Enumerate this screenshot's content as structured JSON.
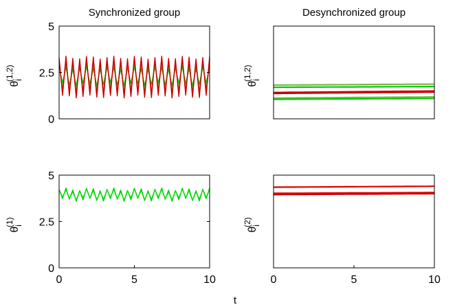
{
  "figure": {
    "xlabel": "t"
  },
  "chart_data": [
    {
      "id": "sync-mixed",
      "type": "line",
      "title": "Synchronized group",
      "ylabel_base": "θ",
      "ylabel_sub": "i",
      "ylabel_sup": "(1,2)",
      "xlim": [
        0,
        10
      ],
      "ylim": [
        0,
        5
      ],
      "xticks": [],
      "yticks": [
        "0",
        "2.5",
        "5"
      ],
      "yticks_values": [
        0,
        2.5,
        5
      ],
      "pattern": "oscillating",
      "cycles": 22,
      "series": [
        {
          "color": "#cc0000",
          "mean": 2.25,
          "amp": 1.05,
          "phase": 0.0
        },
        {
          "color": "#7fb24d",
          "mean": 2.25,
          "amp": 0.7,
          "phase": 0.4
        },
        {
          "color": "#00cc00",
          "mean": 2.3,
          "amp": 0.45,
          "phase": 0.8
        },
        {
          "color": "#cc0000",
          "mean": 2.25,
          "amp": 0.9,
          "phase": 0.2
        }
      ]
    },
    {
      "id": "desync-mixed",
      "type": "line",
      "title": "Desynchronized group",
      "ylabel_base": "θ",
      "ylabel_sub": "i",
      "ylabel_sup": "(1,2)",
      "xlim": [
        0,
        10
      ],
      "ylim": [
        0,
        5
      ],
      "xticks": [],
      "yticks": [],
      "yticks_values": [],
      "pattern": "flat",
      "series": [
        {
          "color": "#7fb24d",
          "y0": 1.82,
          "y1": 1.87
        },
        {
          "color": "#00cc00",
          "y0": 1.7,
          "y1": 1.74
        },
        {
          "color": "#cc0000",
          "y0": 1.42,
          "y1": 1.5
        },
        {
          "color": "#cc0000",
          "y0": 1.37,
          "y1": 1.44
        },
        {
          "color": "#7fb24d",
          "y0": 1.12,
          "y1": 1.18
        },
        {
          "color": "#00cc00",
          "y0": 1.05,
          "y1": 1.1
        }
      ]
    },
    {
      "id": "sync-one",
      "type": "line",
      "title": "",
      "ylabel_base": "θ",
      "ylabel_sub": "i",
      "ylabel_sup": "(1)",
      "xlim": [
        0,
        10
      ],
      "ylim": [
        0,
        5
      ],
      "xticks": [
        "0",
        "5",
        "10"
      ],
      "xticks_values": [
        0,
        5,
        10
      ],
      "yticks": [
        "0",
        "2.5",
        "5"
      ],
      "yticks_values": [
        0,
        2.5,
        5
      ],
      "pattern": "oscillating",
      "cycles": 22,
      "series": [
        {
          "color": "#00cc00",
          "mean": 3.95,
          "amp": 0.28,
          "phase": 0.0
        },
        {
          "color": "#00dd00",
          "mean": 3.95,
          "amp": 0.22,
          "phase": 0.5
        }
      ]
    },
    {
      "id": "desync-two",
      "type": "line",
      "title": "",
      "ylabel_base": "θ",
      "ylabel_sub": "i",
      "ylabel_sup": "(2)",
      "xlim": [
        0,
        10
      ],
      "ylim": [
        0,
        5
      ],
      "xticks": [
        "0",
        "5",
        "10"
      ],
      "xticks_values": [
        0,
        5,
        10
      ],
      "yticks": [],
      "yticks_values": [],
      "pattern": "flat",
      "series": [
        {
          "color": "#dd0000",
          "y0": 4.35,
          "y1": 4.4
        },
        {
          "color": "#dd0000",
          "y0": 4.02,
          "y1": 4.06
        },
        {
          "color": "#cc0000",
          "y0": 3.95,
          "y1": 4.0
        }
      ]
    }
  ]
}
